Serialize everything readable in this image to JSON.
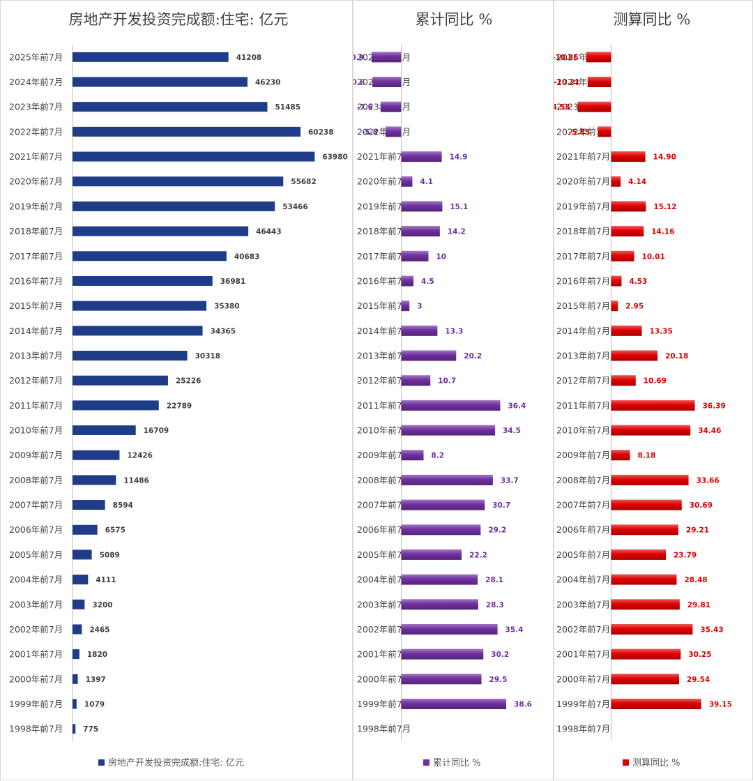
{
  "chart_data": [
    {
      "type": "bar",
      "orientation": "horizontal",
      "title": "房地产开发投资完成额:住宅: 亿元",
      "legend": "房地产开发投资完成额:住宅: 亿元",
      "legend_position": "bottom",
      "color": "#1f3c88",
      "label_color": "#404040",
      "xlim": [
        0,
        70000
      ],
      "categories": [
        "2025年前7月",
        "2024年前7月",
        "2023年前7月",
        "2022年前7月",
        "2021年前7月",
        "2020年前7月",
        "2019年前7月",
        "2018年前7月",
        "2017年前7月",
        "2016年前7月",
        "2015年前7月",
        "2014年前7月",
        "2013年前7月",
        "2012年前7月",
        "2011年前7月",
        "2010年前7月",
        "2009年前7月",
        "2008年前7月",
        "2007年前7月",
        "2006年前7月",
        "2005年前7月",
        "2004年前7月",
        "2003年前7月",
        "2002年前7月",
        "2001年前7月",
        "2000年前7月",
        "1999年前7月",
        "1998年前7月"
      ],
      "values": [
        41208,
        46230,
        51485,
        60238,
        63980,
        55682,
        53466,
        46443,
        40683,
        36981,
        35380,
        34365,
        30318,
        25226,
        22789,
        16709,
        12426,
        11486,
        8594,
        6575,
        5089,
        4111,
        3200,
        2465,
        1820,
        1397,
        1079,
        775
      ],
      "labels": [
        "41208",
        "46230",
        "51485",
        "60238",
        "63980",
        "55682",
        "53466",
        "46443",
        "40683",
        "36981",
        "35380",
        "34365",
        "30318",
        "25226",
        "22789",
        "16709",
        "12426",
        "11486",
        "8594",
        "6575",
        "5089",
        "4111",
        "3200",
        "2465",
        "1820",
        "1397",
        "1079",
        "775"
      ]
    },
    {
      "type": "bar",
      "orientation": "horizontal",
      "title": "累计同比 %",
      "legend": "累计同比 %",
      "legend_position": "bottom",
      "color": "#7030a0",
      "label_color": "#7030a0",
      "xlim": [
        -15,
        45
      ],
      "categories": [
        "2025年前7月",
        "2024年前7月",
        "2023年前7月",
        "2022年前7月",
        "2021年前7月",
        "2020年前7月",
        "2019年前7月",
        "2018年前7月",
        "2017年前7月",
        "2016年前7月",
        "2015年前7月",
        "2014年前7月",
        "2013年前7月",
        "2012年前7月",
        "2011年前7月",
        "2010年前7月",
        "2009年前7月",
        "2008年前7月",
        "2007年前7月",
        "2006年前7月",
        "2005年前7月",
        "2004年前7月",
        "2003年前7月",
        "2002年前7月",
        "2001年前7月",
        "2000年前7月",
        "1999年前7月",
        "1998年前7月"
      ],
      "values": [
        -10.9,
        -10.6,
        -7.6,
        -5.8,
        14.9,
        4.1,
        15.1,
        14.2,
        10,
        4.5,
        3,
        13.3,
        20.2,
        10.7,
        36.4,
        34.5,
        8.2,
        33.7,
        30.7,
        29.2,
        22.2,
        28.1,
        28.3,
        35.4,
        30.2,
        29.5,
        38.6,
        null
      ],
      "labels": [
        "-10.9",
        "-10.6",
        "-7.6",
        "-5.8",
        "14.9",
        "4.1",
        "15.1",
        "14.2",
        "10",
        "4.5",
        "3",
        "13.3",
        "20.2",
        "10.7",
        "36.4",
        "34.5",
        "8.2",
        "33.7",
        "30.7",
        "29.2",
        "22.2",
        "28.1",
        "28.3",
        "35.4",
        "30.2",
        "29.5",
        "38.6",
        ""
      ]
    },
    {
      "type": "bar",
      "orientation": "horizontal",
      "title": "测算同比 %",
      "legend": "测算同比 %",
      "legend_position": "bottom",
      "color": "#e00000",
      "label_color": "#e00000",
      "xlim": [
        -15,
        45
      ],
      "categories": [
        "2025年前7月",
        "2024年前7月",
        "2023年前7月",
        "2022年前7月",
        "2021年前7月",
        "2020年前7月",
        "2019年前7月",
        "2018年前7月",
        "2017年前7月",
        "2016年前7月",
        "2015年前7月",
        "2014年前7月",
        "2013年前7月",
        "2012年前7月",
        "2011年前7月",
        "2010年前7月",
        "2009年前7月",
        "2008年前7月",
        "2007年前7月",
        "2006年前7月",
        "2005年前7月",
        "2004年前7月",
        "2003年前7月",
        "2002年前7月",
        "2001年前7月",
        "2000年前7月",
        "1999年前7月",
        "1998年前7月"
      ],
      "values": [
        -10.86,
        -10.21,
        -14.53,
        -5.85,
        14.9,
        4.14,
        15.12,
        14.16,
        10.01,
        4.53,
        2.95,
        13.35,
        20.18,
        10.69,
        36.39,
        34.46,
        8.18,
        33.66,
        30.69,
        29.21,
        23.79,
        28.48,
        29.81,
        35.43,
        30.25,
        29.54,
        39.15,
        null
      ],
      "labels": [
        "-10.86",
        "-10.21",
        "-14.53",
        "-5.85",
        "14.90",
        "4.14",
        "15.12",
        "14.16",
        "10.01",
        "4.53",
        "2.95",
        "13.35",
        "20.18",
        "10.69",
        "36.39",
        "34.46",
        "8.18",
        "33.66",
        "30.69",
        "29.21",
        "23.79",
        "28.48",
        "29.81",
        "35.43",
        "30.25",
        "29.54",
        "39.15",
        ""
      ]
    }
  ]
}
